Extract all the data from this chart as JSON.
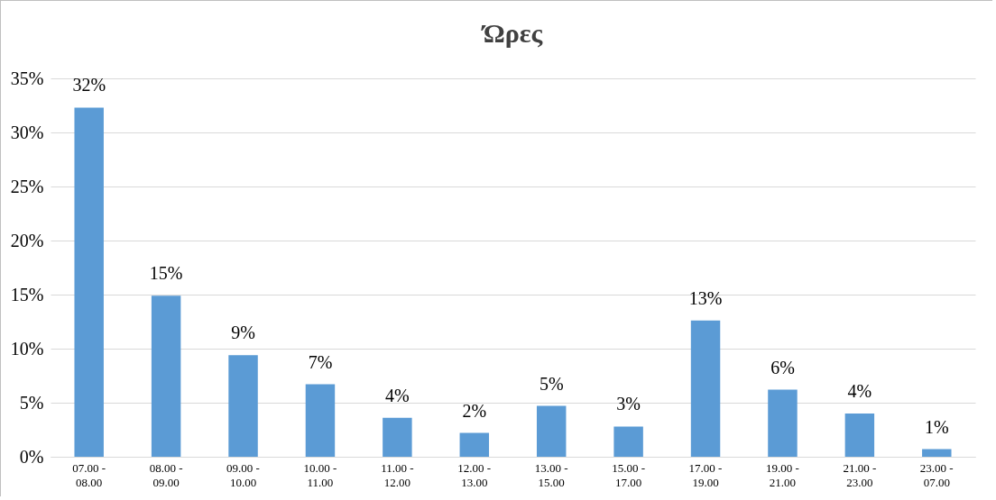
{
  "chart_data": {
    "type": "bar",
    "title": "Ώρες",
    "categories": [
      "07.00 -\n08.00",
      "08.00 -\n09.00",
      "09.00 -\n10.00",
      "10.00 -\n11.00",
      "11.00 -\n12.00",
      "12.00 -\n13.00",
      "13.00 -\n15.00",
      "15.00 -\n17.00",
      "17.00 -\n19.00",
      "19.00 -\n21.00",
      "21.00 -\n23.00",
      "23.00 -\n07.00"
    ],
    "values": [
      32.3,
      14.9,
      9.4,
      6.7,
      3.6,
      2.2,
      4.7,
      2.8,
      12.6,
      6.2,
      4.0,
      0.7
    ],
    "value_labels": [
      "32%",
      "15%",
      "9%",
      "7%",
      "4%",
      "2%",
      "5%",
      "3%",
      "13%",
      "6%",
      "4%",
      "1%"
    ],
    "color": "#5b9bd5",
    "ylim": [
      0,
      35
    ],
    "yticks": [
      {
        "value": 0,
        "label": "0%"
      },
      {
        "value": 5,
        "label": "5%"
      },
      {
        "value": 10,
        "label": "10%"
      },
      {
        "value": 15,
        "label": "15%"
      },
      {
        "value": 20,
        "label": "20%"
      },
      {
        "value": 25,
        "label": "25%"
      },
      {
        "value": 30,
        "label": "30%"
      },
      {
        "value": 35,
        "label": "35%"
      }
    ],
    "grid": "y"
  }
}
